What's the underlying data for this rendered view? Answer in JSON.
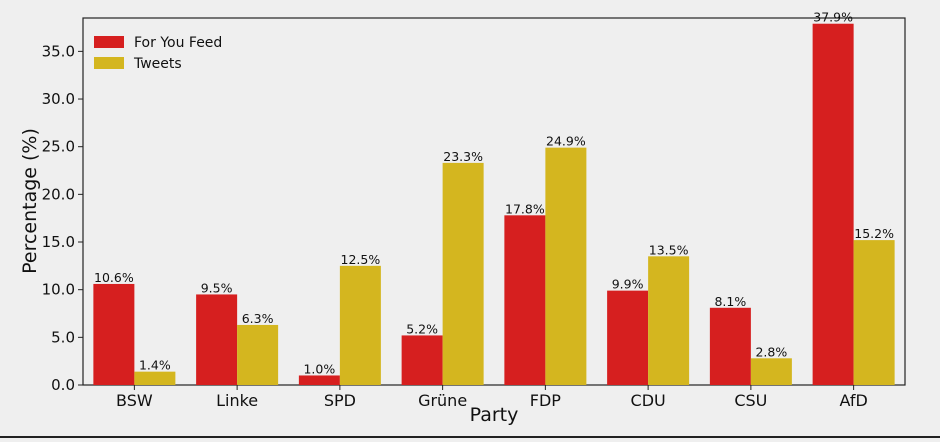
{
  "chart_data": {
    "type": "bar",
    "xlabel": "Party",
    "ylabel": "Percentage (%)",
    "ylim": [
      0,
      38.5
    ],
    "yticks": [
      0.0,
      5.0,
      10.0,
      15.0,
      20.0,
      25.0,
      30.0,
      35.0
    ],
    "ytick_labels": [
      "0.0",
      "5.0",
      "10.0",
      "15.0",
      "20.0",
      "25.0",
      "30.0",
      "35.0"
    ],
    "categories": [
      "BSW",
      "Linke",
      "SPD",
      "Grüne",
      "FDP",
      "CDU",
      "CSU",
      "AfD"
    ],
    "legend_position": "top-left",
    "grid": false,
    "series": [
      {
        "name": "For You Feed",
        "color": "#d61f1f",
        "values": [
          10.6,
          9.5,
          1.0,
          5.2,
          17.8,
          9.9,
          8.1,
          37.9
        ],
        "labels": [
          "10.6%",
          "9.5%",
          "1.0%",
          "5.2%",
          "17.8%",
          "9.9%",
          "8.1%",
          "37.9%"
        ]
      },
      {
        "name": "Tweets",
        "color": "#d4b61f",
        "values": [
          1.4,
          6.3,
          12.5,
          23.3,
          24.9,
          13.5,
          2.8,
          15.2
        ],
        "labels": [
          "1.4%",
          "6.3%",
          "12.5%",
          "23.3%",
          "24.9%",
          "13.5%",
          "2.8%",
          "15.2%"
        ]
      }
    ]
  }
}
